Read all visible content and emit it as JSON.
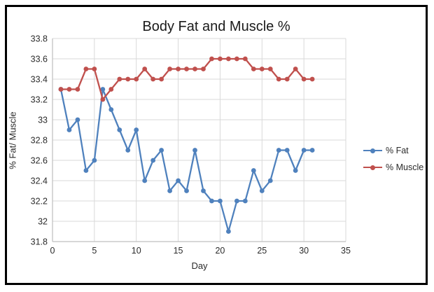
{
  "chart": {
    "title": "Body Fat and Muscle %",
    "y_axis_title": "% Fat/ Muscle",
    "x_axis_title": "Day",
    "legend": [
      {
        "label": "% Fat",
        "color": "#4F81BD"
      },
      {
        "label": "% Muscle",
        "color": "#C0504D"
      }
    ]
  },
  "colors": {
    "grid": "#D9D9D9",
    "axis": "#BFBFBF",
    "tick_text": "#2b2b2b",
    "title_text": "#1a1a1a",
    "frame_border": "#000000",
    "fat_series": "#4F81BD",
    "muscle_series": "#C0504D"
  },
  "chart_data": {
    "type": "line",
    "title": "Body Fat and Muscle %",
    "xlabel": "Day",
    "ylabel": "% Fat/ Muscle",
    "xlim": [
      0,
      35
    ],
    "ylim": [
      31.8,
      33.8
    ],
    "x_ticks": [
      0,
      5,
      10,
      15,
      20,
      25,
      30,
      35
    ],
    "y_ticks": [
      31.8,
      32,
      32.2,
      32.4,
      32.6,
      32.8,
      33,
      33.2,
      33.4,
      33.6,
      33.8
    ],
    "y_tick_labels": [
      "31.8",
      "32",
      "32.2",
      "32.4",
      "32.6",
      "32.8",
      "33",
      "33.2",
      "33.4",
      "33.6",
      "33.8"
    ],
    "grid": true,
    "legend_position": "right",
    "x": [
      1,
      2,
      3,
      4,
      5,
      6,
      7,
      8,
      9,
      10,
      11,
      12,
      13,
      14,
      15,
      16,
      17,
      18,
      19,
      20,
      21,
      22,
      23,
      24,
      25,
      26,
      27,
      28,
      29,
      30,
      31
    ],
    "series": [
      {
        "name": "% Fat",
        "color": "#4F81BD",
        "values": [
          33.3,
          32.9,
          33.0,
          32.5,
          32.6,
          33.3,
          33.1,
          32.9,
          32.7,
          32.9,
          32.4,
          32.6,
          32.7,
          32.3,
          32.4,
          32.3,
          32.7,
          32.3,
          32.2,
          32.2,
          31.9,
          32.2,
          32.2,
          32.5,
          32.3,
          32.4,
          32.7,
          32.7,
          32.5,
          32.7,
          32.7
        ]
      },
      {
        "name": "% Muscle",
        "color": "#C0504D",
        "values": [
          33.3,
          33.3,
          33.3,
          33.5,
          33.5,
          33.2,
          33.3,
          33.4,
          33.4,
          33.4,
          33.5,
          33.4,
          33.4,
          33.5,
          33.5,
          33.5,
          33.5,
          33.5,
          33.6,
          33.6,
          33.6,
          33.6,
          33.6,
          33.5,
          33.5,
          33.5,
          33.4,
          33.4,
          33.5,
          33.4,
          33.4
        ]
      }
    ]
  }
}
